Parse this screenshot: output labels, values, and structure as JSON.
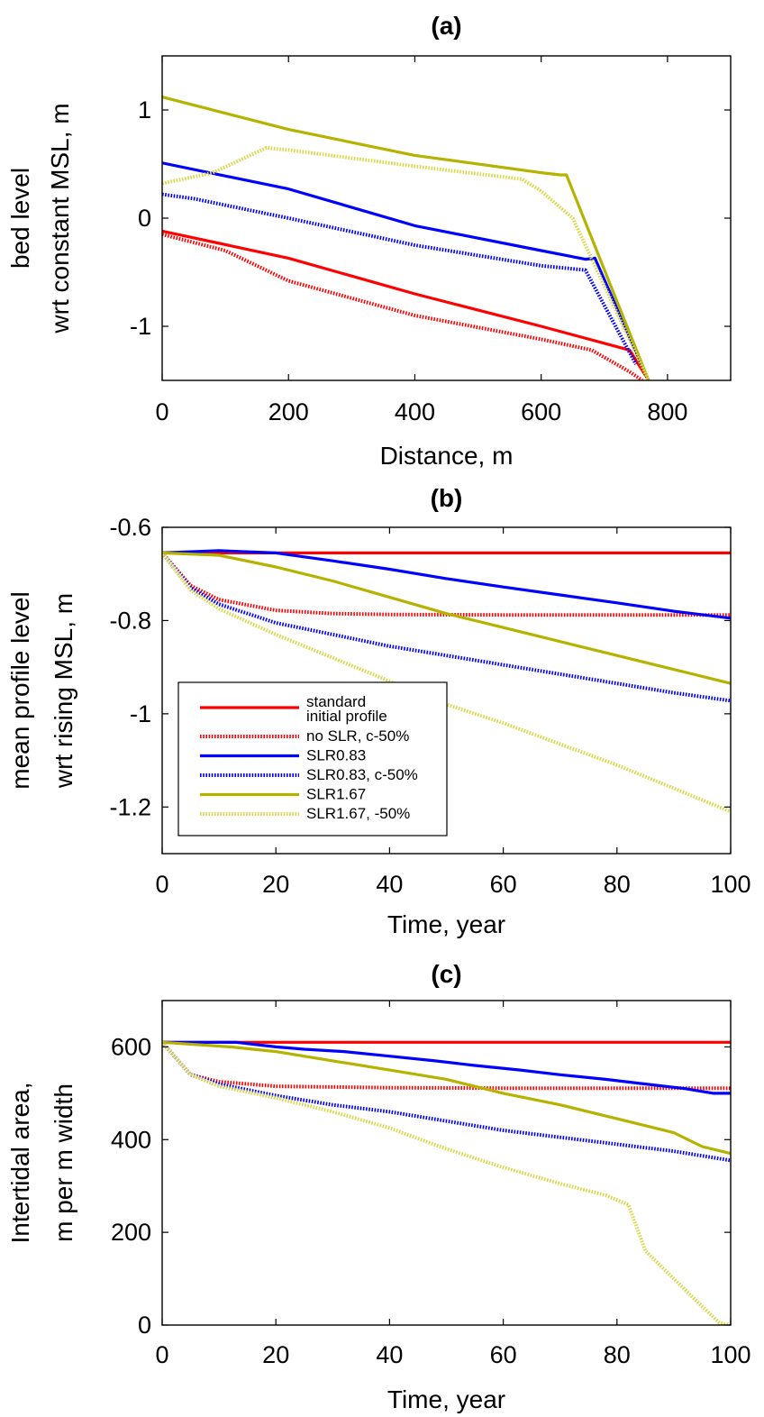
{
  "chart_data": [
    {
      "type": "line",
      "panel": "a",
      "title": "(a)",
      "xlabel": "Distance, m",
      "ylabel": [
        "bed level",
        "wrt constant MSL, m"
      ],
      "xlim": [
        0,
        900
      ],
      "ylim": [
        -1.5,
        1.5
      ],
      "xticks": [
        0,
        200,
        400,
        600,
        800
      ],
      "yticks": [
        -1,
        0,
        1
      ],
      "xtick_labels": [
        "0",
        "200",
        "400",
        "600",
        "800"
      ],
      "ytick_labels": [
        "-1",
        "0",
        "1"
      ],
      "grid": false,
      "series": [
        {
          "color": "#ff0000",
          "dashed": false,
          "x": [
            0,
            200,
            400,
            600,
            740,
            770
          ],
          "y": [
            -0.12,
            -0.37,
            -0.7,
            -1.0,
            -1.22,
            -1.5
          ]
        },
        {
          "color": "#ff0000",
          "dashed": true,
          "x": [
            0,
            100,
            200,
            400,
            600,
            680,
            740,
            760
          ],
          "y": [
            -0.15,
            -0.3,
            -0.58,
            -0.9,
            -1.12,
            -1.22,
            -1.42,
            -1.5
          ]
        },
        {
          "color": "#0000ff",
          "dashed": false,
          "x": [
            0,
            200,
            400,
            600,
            670,
            685,
            770
          ],
          "y": [
            0.51,
            0.27,
            -0.07,
            -0.3,
            -0.38,
            -0.37,
            -1.5
          ]
        },
        {
          "color": "#0000ff",
          "dashed": true,
          "x": [
            0,
            50,
            200,
            400,
            600,
            670,
            750
          ],
          "y": [
            0.22,
            0.18,
            0.0,
            -0.25,
            -0.44,
            -0.48,
            -1.35
          ]
        },
        {
          "color": "#b5b200",
          "dashed": false,
          "x": [
            0,
            200,
            400,
            600,
            630,
            640,
            770
          ],
          "y": [
            1.12,
            0.82,
            0.58,
            0.42,
            0.4,
            0.4,
            -1.5
          ]
        },
        {
          "color": "#d9d84a",
          "dashed": true,
          "x": [
            0,
            80,
            165,
            200,
            400,
            570,
            600,
            650,
            770
          ],
          "y": [
            0.32,
            0.42,
            0.65,
            0.63,
            0.48,
            0.36,
            0.25,
            0.0,
            -1.5
          ]
        }
      ]
    },
    {
      "type": "line",
      "panel": "b",
      "title": "(b)",
      "xlabel": "Time, year",
      "ylabel": [
        "mean profile level",
        "wrt rising MSL, m"
      ],
      "xlim": [
        0,
        100
      ],
      "ylim": [
        -1.3,
        -0.6
      ],
      "xticks": [
        0,
        20,
        40,
        60,
        80,
        100
      ],
      "yticks": [
        -1.2,
        -1,
        -0.8,
        -0.6
      ],
      "xtick_labels": [
        "0",
        "20",
        "40",
        "60",
        "80",
        "100"
      ],
      "ytick_labels": [
        "-1.2",
        "-1",
        "-0.8",
        "-0.6"
      ],
      "grid": false,
      "legend": {
        "position": "bottom-left",
        "entries": [
          {
            "label": [
              "standard",
              "initial profile"
            ],
            "color": "#ff0000",
            "dashed": false
          },
          {
            "label": [
              "no SLR, c-50%"
            ],
            "color": "#ff0000",
            "dashed": true
          },
          {
            "label": [
              "SLR0.83"
            ],
            "color": "#0000ff",
            "dashed": false
          },
          {
            "label": [
              "SLR0.83, c-50%"
            ],
            "color": "#0000ff",
            "dashed": true
          },
          {
            "label": [
              "SLR1.67"
            ],
            "color": "#b5b200",
            "dashed": false
          },
          {
            "label": [
              "SLR1.67, -50%"
            ],
            "color": "#d9d84a",
            "dashed": true
          }
        ]
      },
      "series": [
        {
          "name": "standard initial profile",
          "color": "#ff0000",
          "dashed": false,
          "x": [
            0,
            100
          ],
          "y": [
            -0.655,
            -0.655
          ]
        },
        {
          "name": "no SLR, c-50%",
          "color": "#ff0000",
          "dashed": true,
          "x": [
            0,
            5,
            10,
            20,
            30,
            40,
            60,
            80,
            100
          ],
          "y": [
            -0.655,
            -0.725,
            -0.755,
            -0.778,
            -0.785,
            -0.787,
            -0.788,
            -0.788,
            -0.788
          ]
        },
        {
          "name": "SLR0.83",
          "color": "#0000ff",
          "dashed": false,
          "x": [
            0,
            10,
            20,
            30,
            40,
            50,
            60,
            70,
            80,
            90,
            100
          ],
          "y": [
            -0.655,
            -0.65,
            -0.655,
            -0.672,
            -0.69,
            -0.71,
            -0.728,
            -0.745,
            -0.762,
            -0.78,
            -0.795
          ]
        },
        {
          "name": "SLR0.83, c-50%",
          "color": "#0000ff",
          "dashed": true,
          "x": [
            0,
            5,
            10,
            20,
            30,
            40,
            50,
            60,
            70,
            80,
            90,
            100
          ],
          "y": [
            -0.655,
            -0.73,
            -0.765,
            -0.805,
            -0.83,
            -0.855,
            -0.875,
            -0.895,
            -0.915,
            -0.935,
            -0.955,
            -0.972
          ]
        },
        {
          "name": "SLR1.67",
          "color": "#b5b200",
          "dashed": false,
          "x": [
            0,
            10,
            20,
            30,
            40,
            50,
            60,
            70,
            80,
            90,
            100
          ],
          "y": [
            -0.655,
            -0.66,
            -0.685,
            -0.715,
            -0.75,
            -0.785,
            -0.815,
            -0.845,
            -0.875,
            -0.905,
            -0.935
          ]
        },
        {
          "name": "SLR1.67, -50%",
          "color": "#d9d84a",
          "dashed": true,
          "x": [
            0,
            5,
            10,
            20,
            30,
            40,
            50,
            60,
            70,
            80,
            90,
            100
          ],
          "y": [
            -0.655,
            -0.735,
            -0.775,
            -0.83,
            -0.88,
            -0.93,
            -0.98,
            -1.02,
            -1.065,
            -1.11,
            -1.16,
            -1.21
          ]
        }
      ]
    },
    {
      "type": "line",
      "panel": "c",
      "title": "(c)",
      "xlabel": "Time, year",
      "ylabel": [
        "Intertidal area,",
        "m per m width"
      ],
      "xlim": [
        0,
        100
      ],
      "ylim": [
        0,
        700
      ],
      "xticks": [
        0,
        20,
        40,
        60,
        80,
        100
      ],
      "yticks": [
        0,
        200,
        400,
        600
      ],
      "xtick_labels": [
        "0",
        "20",
        "40",
        "60",
        "80",
        "100"
      ],
      "ytick_labels": [
        "0",
        "200",
        "400",
        "600"
      ],
      "grid": false,
      "series": [
        {
          "color": "#ff0000",
          "dashed": false,
          "x": [
            0,
            100
          ],
          "y": [
            610,
            610
          ]
        },
        {
          "color": "#ff0000",
          "dashed": true,
          "x": [
            0,
            5,
            10,
            20,
            40,
            60,
            80,
            100
          ],
          "y": [
            610,
            540,
            525,
            515,
            512,
            511,
            511,
            511
          ]
        },
        {
          "color": "#0000ff",
          "dashed": false,
          "x": [
            0,
            13,
            20,
            25,
            32,
            40,
            48,
            55,
            63,
            70,
            78,
            85,
            92,
            97,
            100
          ],
          "y": [
            610,
            610,
            600,
            595,
            590,
            580,
            570,
            560,
            550,
            540,
            530,
            520,
            510,
            500,
            500
          ]
        },
        {
          "color": "#0000ff",
          "dashed": true,
          "x": [
            0,
            5,
            10,
            20,
            30,
            40,
            50,
            60,
            70,
            80,
            90,
            100
          ],
          "y": [
            610,
            540,
            520,
            495,
            475,
            460,
            440,
            420,
            405,
            390,
            375,
            355
          ]
        },
        {
          "color": "#b5b200",
          "dashed": false,
          "x": [
            0,
            12,
            20,
            30,
            40,
            50,
            60,
            70,
            80,
            90,
            95,
            100
          ],
          "y": [
            610,
            600,
            590,
            570,
            550,
            530,
            500,
            475,
            445,
            415,
            385,
            370
          ]
        },
        {
          "color": "#d9d84a",
          "dashed": true,
          "x": [
            0,
            5,
            10,
            20,
            30,
            40,
            50,
            60,
            70,
            78,
            82,
            85,
            90,
            95,
            98,
            100
          ],
          "y": [
            610,
            540,
            515,
            490,
            460,
            425,
            380,
            340,
            305,
            280,
            260,
            160,
            100,
            40,
            5,
            0
          ]
        }
      ]
    }
  ]
}
